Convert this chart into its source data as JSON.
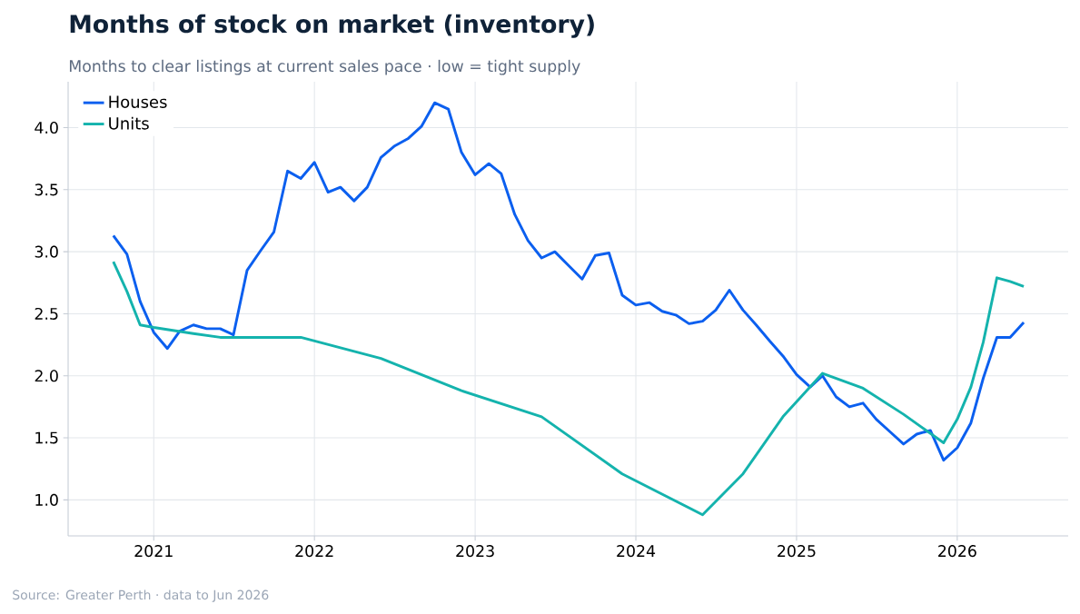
{
  "chart_data": {
    "type": "line",
    "title": "Months of stock on market (inventory)",
    "subtitle": "Months to clear listings at current sales pace · low = tight supply",
    "annotations": [
      "Source: Greater Perth  ·  data to Jun 2026"
    ],
    "xlim": [
      "2020-06-20",
      "2026-09-10"
    ],
    "ylim": [
      0.71,
      4.37
    ],
    "xticks": [
      "2021",
      "2022",
      "2023",
      "2024",
      "2025",
      "2026"
    ],
    "yticks": [
      {
        "value": 1.0,
        "label": "1.0"
      },
      {
        "value": 1.5,
        "label": "1.5"
      },
      {
        "value": 2.0,
        "label": "2.0"
      },
      {
        "value": 2.5,
        "label": "2.5"
      },
      {
        "value": 3.0,
        "label": "3.0"
      },
      {
        "value": 3.5,
        "label": "3.5"
      },
      {
        "value": 4.0,
        "label": "4.0"
      }
    ],
    "grid": true,
    "legend": "top left",
    "marker": "none",
    "line_style": "solid",
    "series": [
      {
        "name": "Houses",
        "color": "#0b5fef",
        "x": [
          "2020-10",
          "2020-11",
          "2020-12",
          "2021-01",
          "2021-02",
          "2021-03",
          "2021-04",
          "2021-05",
          "2021-06",
          "2021-07",
          "2021-08",
          "2021-09",
          "2021-10",
          "2021-11",
          "2021-12",
          "2022-01",
          "2022-02",
          "2022-03",
          "2022-04",
          "2022-05",
          "2022-06",
          "2022-07",
          "2022-08",
          "2022-09",
          "2022-10",
          "2022-11",
          "2022-12",
          "2023-01",
          "2023-02",
          "2023-03",
          "2023-04",
          "2023-05",
          "2023-06",
          "2023-07",
          "2023-08",
          "2023-09",
          "2023-10",
          "2023-11",
          "2023-12",
          "2024-01",
          "2024-02",
          "2024-03",
          "2024-04",
          "2024-05",
          "2024-06",
          "2024-07",
          "2024-08",
          "2024-09",
          "2024-10",
          "2024-11",
          "2024-12",
          "2025-01",
          "2025-02",
          "2025-03",
          "2025-04",
          "2025-05",
          "2025-06",
          "2025-07",
          "2025-08",
          "2025-09",
          "2025-10",
          "2025-11",
          "2025-12",
          "2026-01",
          "2026-02",
          "2026-03",
          "2026-04",
          "2026-05",
          "2026-06"
        ],
        "values": [
          3.13,
          2.98,
          2.6,
          2.35,
          2.22,
          2.36,
          2.41,
          2.38,
          2.38,
          2.33,
          2.85,
          3.01,
          3.16,
          3.65,
          3.59,
          3.72,
          3.48,
          3.52,
          3.41,
          3.52,
          3.76,
          3.85,
          3.91,
          4.01,
          4.2,
          4.15,
          3.8,
          3.62,
          3.71,
          3.63,
          3.3,
          3.09,
          2.95,
          3.0,
          2.89,
          2.78,
          2.97,
          2.99,
          2.65,
          2.57,
          2.59,
          2.52,
          2.49,
          2.42,
          2.44,
          2.53,
          2.69,
          2.53,
          2.41,
          2.28,
          2.16,
          2.01,
          1.91,
          2.0,
          1.83,
          1.75,
          1.78,
          1.65,
          1.55,
          1.45,
          1.53,
          1.56,
          1.32,
          1.42,
          1.62,
          1.98,
          2.31,
          2.31,
          2.43
        ]
      },
      {
        "name": "Units",
        "color": "#14b3ad",
        "x": [
          "2020-10",
          "2020-11",
          "2020-12",
          "2021-01",
          "2021-04",
          "2021-06",
          "2021-12",
          "2022-06",
          "2022-12",
          "2023-06",
          "2023-12",
          "2024-06",
          "2024-09",
          "2024-12",
          "2025-03",
          "2025-06",
          "2025-09",
          "2025-12",
          "2026-01",
          "2026-02",
          "2026-03",
          "2026-04",
          "2026-05",
          "2026-06"
        ],
        "values": [
          2.92,
          2.68,
          2.41,
          2.39,
          2.34,
          2.31,
          2.31,
          2.14,
          1.88,
          1.67,
          1.21,
          0.88,
          1.21,
          1.67,
          2.02,
          1.9,
          1.69,
          1.46,
          1.65,
          1.91,
          2.27,
          2.79,
          2.76,
          2.72
        ]
      }
    ]
  }
}
